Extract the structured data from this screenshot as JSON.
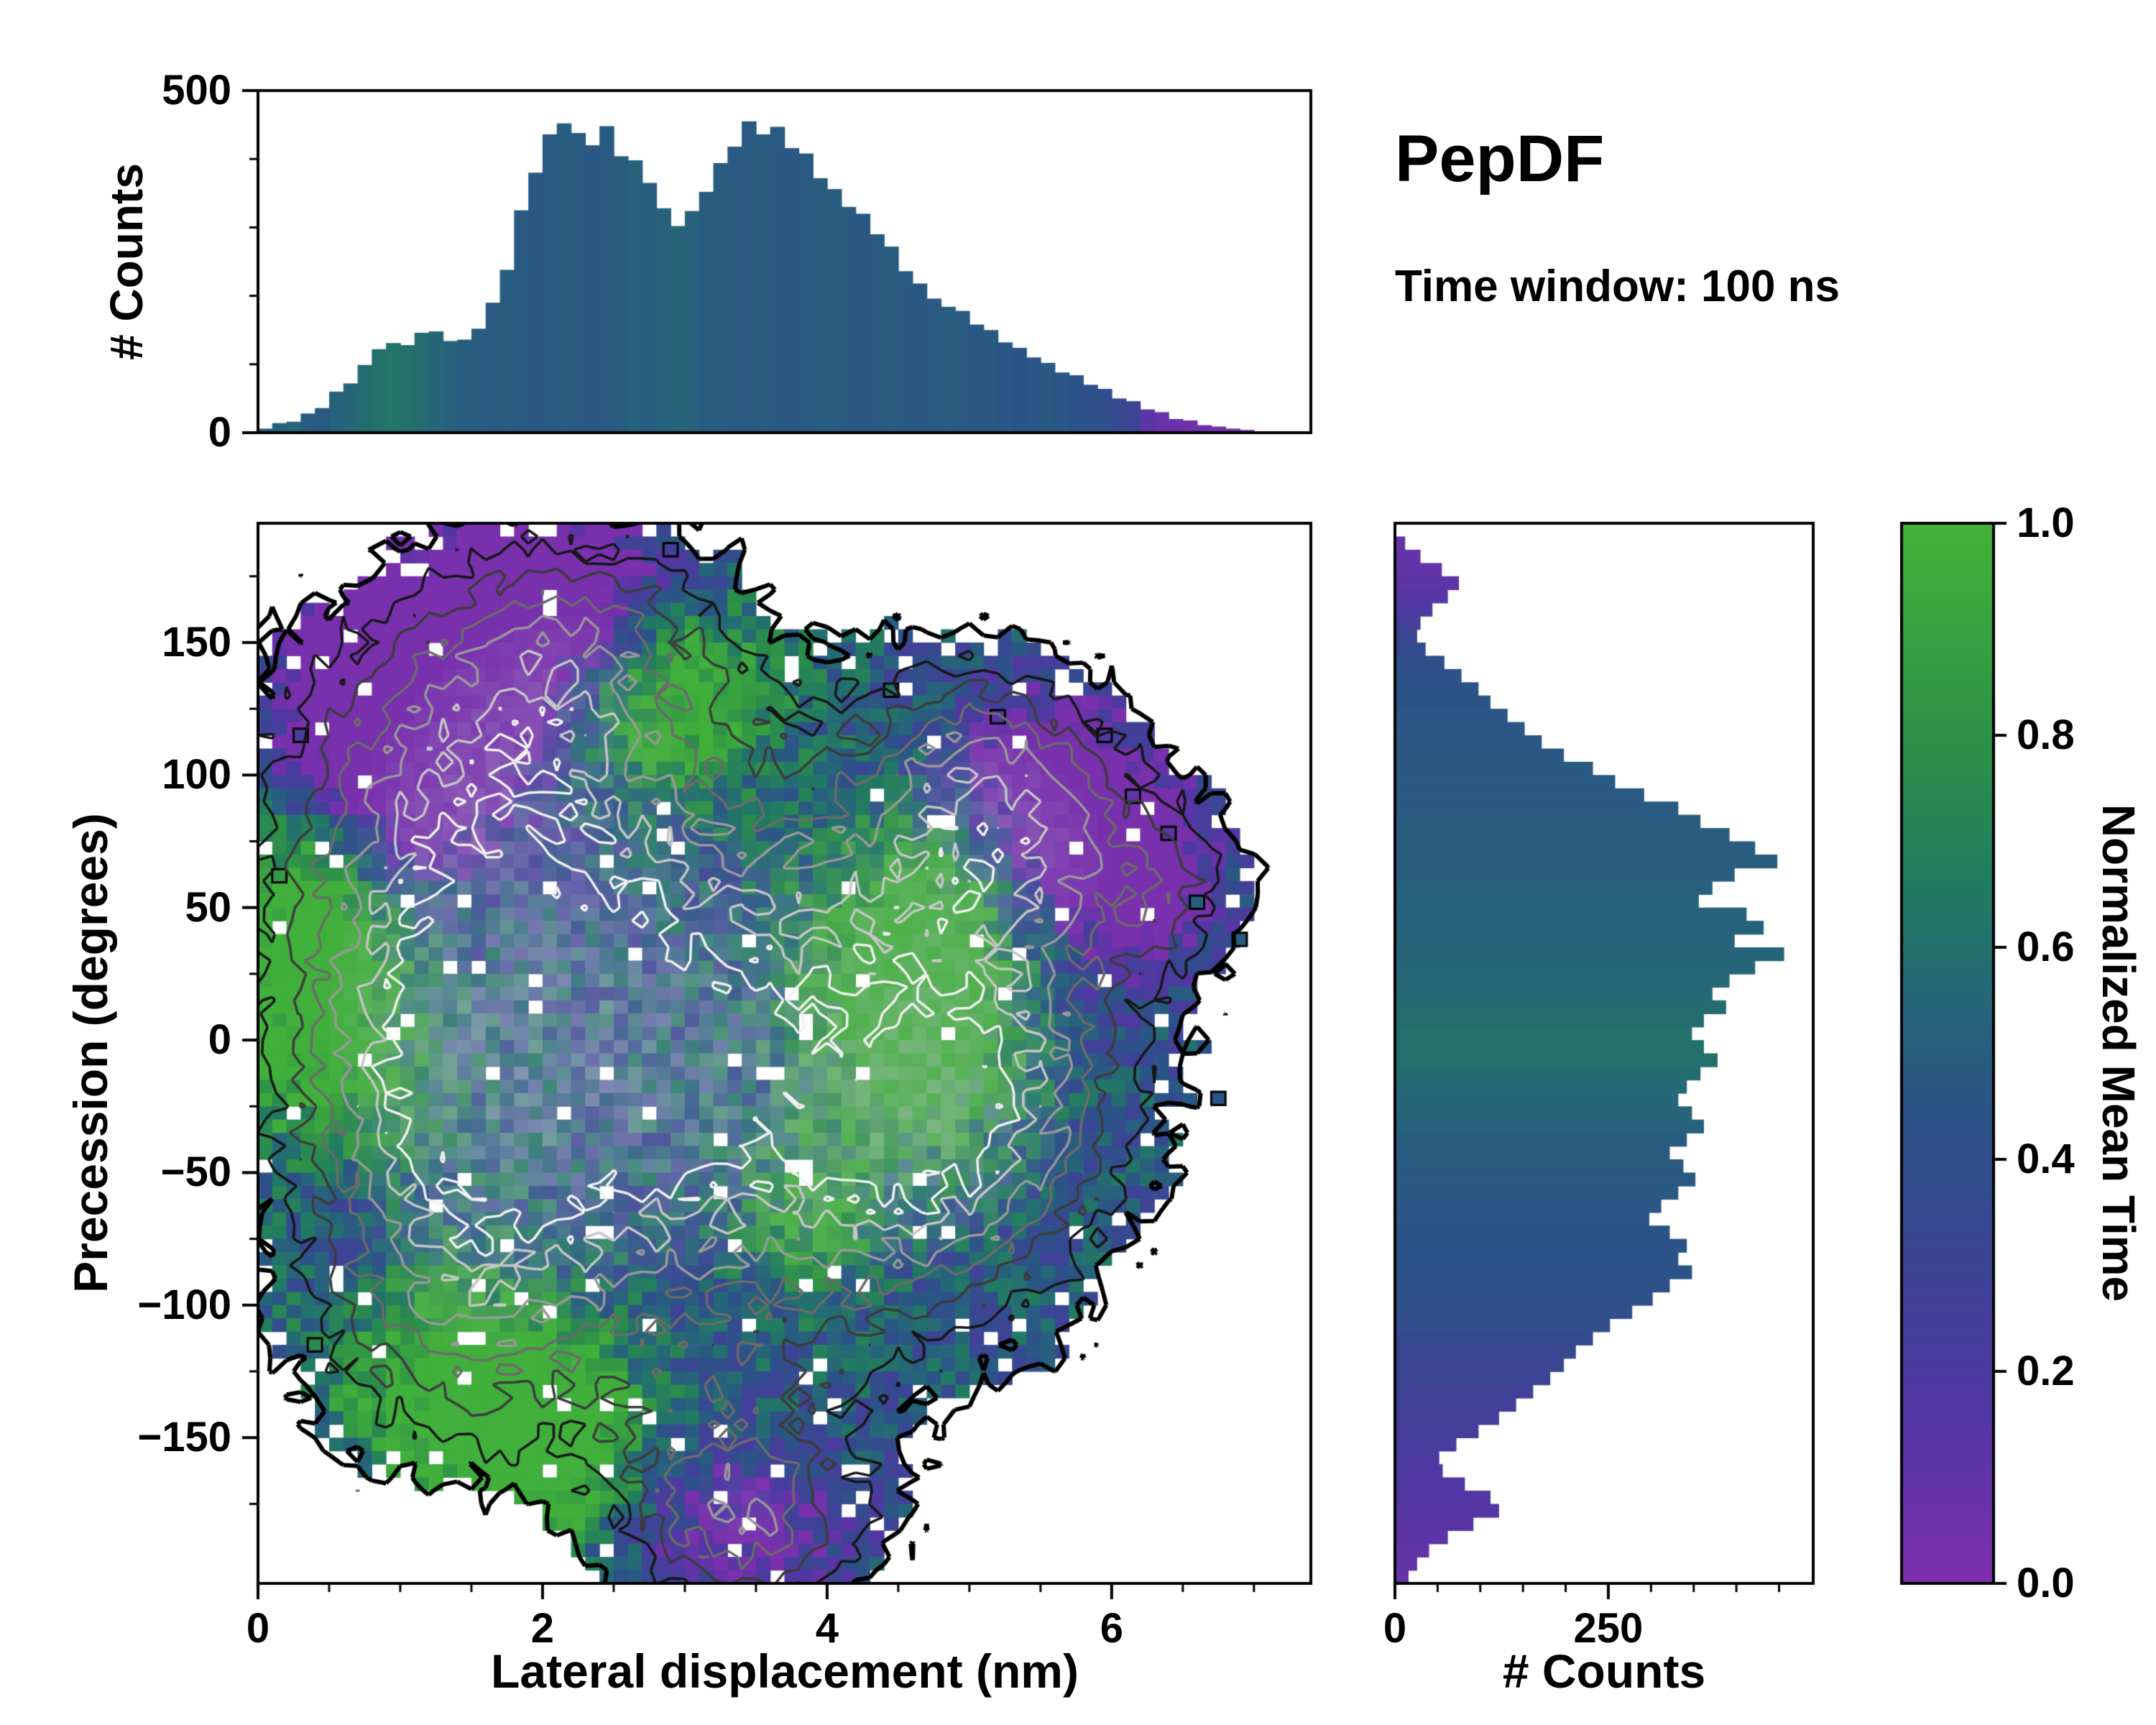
{
  "annotations": {
    "title": "PepDF",
    "subtitle": "Time window: 100 ns"
  },
  "colors": {
    "background": "#ffffff",
    "axis": "#000000",
    "gray_core": "#b7bccb",
    "colormap_stops": [
      {
        "t": 0.0,
        "c": "#7e2fae"
      },
      {
        "t": 0.15,
        "c": "#5336a4"
      },
      {
        "t": 0.3,
        "c": "#3c4494"
      },
      {
        "t": 0.45,
        "c": "#2b5486"
      },
      {
        "t": 0.55,
        "c": "#266678"
      },
      {
        "t": 0.65,
        "c": "#217a62"
      },
      {
        "t": 0.8,
        "c": "#2e9147"
      },
      {
        "t": 1.0,
        "c": "#43b23a"
      }
    ]
  },
  "chart_data": {
    "type": "joint-histogram-heatmap",
    "top_histogram": {
      "type": "bar",
      "orientation": "vertical",
      "ylabel": "# Counts",
      "bin_start": 0,
      "bin_width": 0.1,
      "xlim": [
        0,
        7.4
      ],
      "ylim": [
        0,
        500
      ],
      "yticks": [
        {
          "v": 0,
          "label": "0"
        },
        {
          "v": 500,
          "label": "500"
        }
      ],
      "ytick_minor": [
        100,
        200,
        300,
        400
      ],
      "counts": [
        6,
        14,
        16,
        28,
        36,
        60,
        72,
        99,
        122,
        131,
        128,
        146,
        148,
        134,
        136,
        152,
        190,
        238,
        325,
        380,
        436,
        452,
        438,
        420,
        448,
        404,
        398,
        365,
        328,
        302,
        324,
        352,
        394,
        418,
        455,
        436,
        447,
        416,
        408,
        372,
        356,
        330,
        320,
        290,
        272,
        236,
        218,
        196,
        184,
        178,
        158,
        150,
        132,
        124,
        110,
        102,
        88,
        84,
        70,
        64,
        50,
        46,
        34,
        30,
        20,
        18,
        11,
        9,
        6,
        4,
        2,
        1,
        1,
        0
      ],
      "mean_time": [
        0.5,
        0.52,
        0.55,
        0.5,
        0.48,
        0.52,
        0.55,
        0.58,
        0.6,
        0.62,
        0.6,
        0.58,
        0.55,
        0.52,
        0.5,
        0.5,
        0.48,
        0.5,
        0.48,
        0.47,
        0.48,
        0.5,
        0.48,
        0.47,
        0.48,
        0.5,
        0.52,
        0.5,
        0.52,
        0.54,
        0.52,
        0.5,
        0.5,
        0.48,
        0.48,
        0.5,
        0.48,
        0.47,
        0.48,
        0.5,
        0.5,
        0.48,
        0.47,
        0.48,
        0.5,
        0.48,
        0.47,
        0.48,
        0.5,
        0.48,
        0.47,
        0.48,
        0.46,
        0.45,
        0.46,
        0.48,
        0.46,
        0.44,
        0.42,
        0.4,
        0.35,
        0.3,
        0.12,
        0.08,
        0.07,
        0.06,
        0.06,
        0.05,
        0.05,
        0.05,
        0.05,
        0.05,
        0.05,
        0.05
      ]
    },
    "right_histogram": {
      "type": "bar",
      "orientation": "horizontal",
      "xlabel": "# Counts",
      "bin_start": 195,
      "bin_width": -5,
      "ylim": [
        -205,
        195
      ],
      "xlim": [
        0,
        490
      ],
      "xticks": [
        {
          "v": 0,
          "label": "0"
        },
        {
          "v": 250,
          "label": "250"
        }
      ],
      "xtick_minor": [
        50,
        100,
        150,
        200,
        300,
        350,
        400,
        450
      ],
      "counts": [
        0,
        12,
        30,
        55,
        75,
        62,
        44,
        30,
        26,
        36,
        58,
        78,
        98,
        112,
        132,
        152,
        172,
        198,
        232,
        258,
        292,
        332,
        358,
        392,
        422,
        448,
        398,
        372,
        356,
        412,
        432,
        398,
        456,
        422,
        392,
        372,
        388,
        362,
        348,
        362,
        378,
        358,
        342,
        332,
        348,
        362,
        342,
        322,
        338,
        352,
        332,
        312,
        298,
        322,
        342,
        332,
        348,
        322,
        302,
        278,
        252,
        232,
        212,
        198,
        182,
        162,
        142,
        122,
        98,
        72,
        52,
        56,
        82,
        112,
        122,
        92,
        62,
        40,
        26,
        16
      ],
      "mean_time": [
        0.1,
        0.08,
        0.09,
        0.1,
        0.12,
        0.14,
        0.18,
        0.25,
        0.32,
        0.36,
        0.4,
        0.42,
        0.44,
        0.45,
        0.46,
        0.46,
        0.47,
        0.47,
        0.48,
        0.48,
        0.48,
        0.48,
        0.5,
        0.5,
        0.5,
        0.5,
        0.5,
        0.52,
        0.52,
        0.52,
        0.52,
        0.54,
        0.54,
        0.55,
        0.56,
        0.56,
        0.58,
        0.58,
        0.6,
        0.6,
        0.6,
        0.58,
        0.56,
        0.55,
        0.54,
        0.52,
        0.5,
        0.5,
        0.48,
        0.48,
        0.48,
        0.46,
        0.46,
        0.45,
        0.44,
        0.44,
        0.43,
        0.42,
        0.42,
        0.4,
        0.38,
        0.36,
        0.34,
        0.32,
        0.3,
        0.28,
        0.26,
        0.25,
        0.24,
        0.22,
        0.2,
        0.18,
        0.16,
        0.15,
        0.14,
        0.13,
        0.12,
        0.1,
        0.1,
        0.08
      ]
    },
    "heatmap": {
      "type": "heatmap",
      "xlabel": "Lateral displacement (nm)",
      "ylabel": "Precession (degrees)",
      "xlim": [
        0,
        7.4
      ],
      "ylim": [
        -205,
        195
      ],
      "xticks": [
        {
          "v": 0,
          "label": "0"
        },
        {
          "v": 2,
          "label": "2"
        },
        {
          "v": 4,
          "label": "4"
        },
        {
          "v": 6,
          "label": "6"
        }
      ],
      "yticks": [
        {
          "v": 150,
          "label": "150"
        },
        {
          "v": 100,
          "label": "100"
        },
        {
          "v": 50,
          "label": "50"
        },
        {
          "v": 0,
          "label": "0"
        },
        {
          "v": -50,
          "label": "−50"
        },
        {
          "v": -100,
          "label": "−100"
        },
        {
          "v": -150,
          "label": "−150"
        }
      ],
      "xtick_minor": [
        0.5,
        1,
        1.5,
        2.5,
        3,
        3.5,
        4.5,
        5,
        5.5,
        6.5,
        7
      ],
      "ytick_minor": [
        175,
        125,
        75,
        25,
        -25,
        -75,
        -125,
        -175
      ],
      "nx": 74,
      "ny": 80,
      "seed": 1337,
      "mask_threshold": 0.42,
      "noise_amp": 0.17,
      "value_noise": 0.2,
      "base_value": 0.46,
      "zone_amp": 0.45,
      "gray_start": 1.3,
      "gray_gain": 0.5,
      "blobs": [
        [
          2.5,
          45,
          1.9,
          95,
          1.0
        ],
        [
          3.6,
          -35,
          1.9,
          95,
          1.0
        ],
        [
          1.3,
          105,
          1.5,
          70,
          0.9
        ],
        [
          2.3,
          150,
          1.1,
          50,
          0.8
        ],
        [
          1.0,
          0,
          1.0,
          80,
          0.8
        ],
        [
          1.3,
          -110,
          1.1,
          60,
          0.8
        ],
        [
          3.3,
          -160,
          1.0,
          48,
          0.85
        ],
        [
          3.5,
          -190,
          0.9,
          30,
          0.7
        ],
        [
          4.9,
          60,
          1.3,
          65,
          0.85
        ],
        [
          5.6,
          80,
          0.9,
          45,
          0.7
        ],
        [
          4.8,
          -55,
          1.2,
          60,
          0.8
        ],
        [
          5.3,
          -15,
          1.0,
          55,
          0.7
        ],
        [
          6.5,
          55,
          0.55,
          35,
          0.55
        ],
        [
          2.0,
          -35,
          1.5,
          80,
          0.9
        ],
        [
          5.0,
          115,
          0.8,
          40,
          0.6
        ]
      ],
      "green_zones": [
        [
          0.45,
          25,
          0.7,
          60
        ],
        [
          0.6,
          -35,
          0.7,
          55
        ],
        [
          1.2,
          -125,
          0.9,
          45
        ],
        [
          1.9,
          -140,
          0.8,
          40
        ],
        [
          2.6,
          125,
          0.8,
          40
        ],
        [
          3.1,
          135,
          0.7,
          35
        ],
        [
          4.4,
          20,
          0.8,
          50
        ],
        [
          4.8,
          45,
          0.7,
          45
        ],
        [
          4.7,
          -10,
          0.6,
          40
        ],
        [
          3.9,
          -65,
          0.5,
          35
        ],
        [
          0.35,
          60,
          0.5,
          45
        ],
        [
          2.1,
          -160,
          0.6,
          35
        ]
      ],
      "purple_zones": [
        [
          1.0,
          135,
          0.9,
          45
        ],
        [
          1.6,
          160,
          0.9,
          40
        ],
        [
          1.4,
          120,
          1.2,
          55
        ],
        [
          0.8,
          100,
          0.7,
          40
        ],
        [
          2.3,
          170,
          0.8,
          35
        ],
        [
          5.8,
          80,
          0.7,
          45
        ],
        [
          6.2,
          60,
          0.6,
          40
        ],
        [
          5.4,
          100,
          0.6,
          35
        ],
        [
          0.6,
          -60,
          0.5,
          40
        ],
        [
          3.4,
          -185,
          0.8,
          30
        ]
      ],
      "outliers": [
        [
          5.95,
          115,
          0.15
        ],
        [
          6.6,
          52,
          0.5
        ],
        [
          6.9,
          38,
          0.5
        ],
        [
          0.3,
          115,
          0.2
        ],
        [
          0.15,
          62,
          0.85
        ],
        [
          6.75,
          -22,
          0.45
        ],
        [
          5.2,
          122,
          0.15
        ],
        [
          4.45,
          132,
          0.6
        ],
        [
          6.15,
          92,
          0.1
        ],
        [
          6.4,
          78,
          0.12
        ],
        [
          2.9,
          185,
          0.25
        ],
        [
          0.4,
          -115,
          0.75
        ]
      ],
      "contour_levels": [
        0.42,
        0.72,
        0.98,
        1.22,
        1.45,
        1.68,
        1.88
      ],
      "contour_colors": [
        "#000000",
        "#161616",
        "#3c3c3c",
        "#6b6b6b",
        "#999999",
        "#c6c6c6",
        "#f1f1f1"
      ],
      "contour_widths": [
        6,
        3.5,
        3.5,
        3.5,
        3.5,
        3.5,
        3.5
      ]
    },
    "colorbar": {
      "label": "Normalized Mean Time",
      "range": [
        0,
        1
      ],
      "ticks": [
        {
          "v": 0,
          "label": "0.0"
        },
        {
          "v": 0.2,
          "label": "0.2"
        },
        {
          "v": 0.4,
          "label": "0.4"
        },
        {
          "v": 0.6,
          "label": "0.6"
        },
        {
          "v": 0.8,
          "label": "0.8"
        },
        {
          "v": 1.0,
          "label": "1.0"
        }
      ]
    }
  }
}
